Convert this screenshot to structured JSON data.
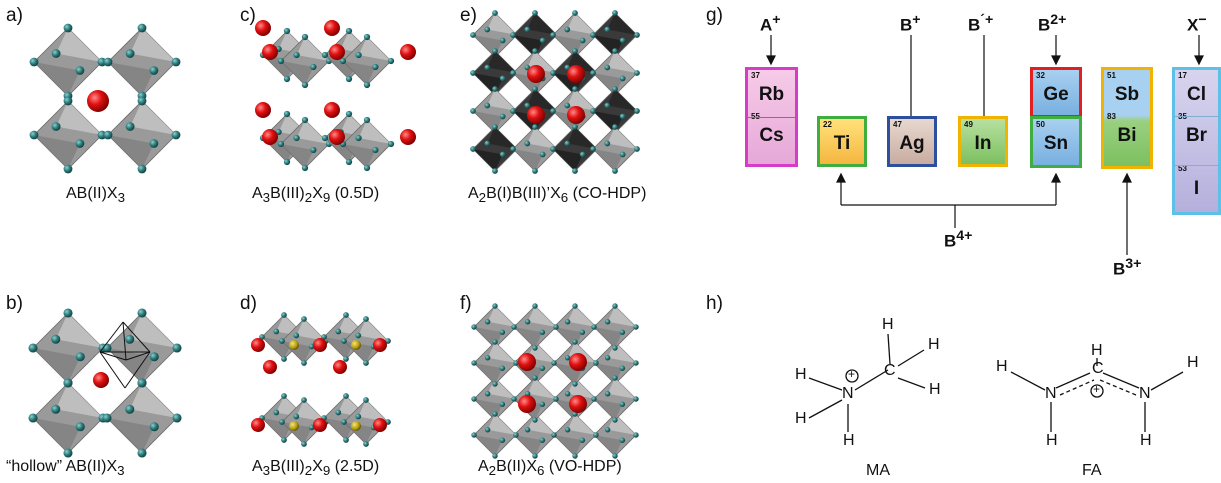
{
  "panels": {
    "a": {
      "label": "a)",
      "caption": "AB(II)X",
      "sub": "3"
    },
    "b": {
      "label": "b)",
      "caption_pre": "“hollow” AB(II)X",
      "sub": "3"
    },
    "c": {
      "label": "c)",
      "c1": "A",
      "s1": "3",
      "c2": "B(III)",
      "s2": "2",
      "c3": "X",
      "s3": "9",
      "c4": " (0.5D)"
    },
    "d": {
      "label": "d)",
      "c1": "A",
      "s1": "3",
      "c2": "B(III)",
      "s2": "2",
      "c3": "X",
      "s3": "9",
      "c4": " (2.5D)"
    },
    "e": {
      "label": "e)",
      "c1": "A",
      "s1": "2",
      "c2": "B(I)B(III)’X",
      "s2": "6",
      "c3": " (CO-HDP)"
    },
    "f": {
      "label": "f)",
      "c1": "A",
      "s1": "2",
      "c2": "B(II)X",
      "s2": "6",
      "c3": " (VO-HDP)"
    },
    "g": {
      "label": "g)"
    },
    "h": {
      "label": "h)"
    }
  },
  "ions": {
    "a_plus": {
      "base": "A",
      "sup": "+"
    },
    "b_plus": {
      "base": "B",
      "sup": "+"
    },
    "b_prime": {
      "base": "B",
      "sup": "´+"
    },
    "b_two": {
      "base": "B",
      "sup": "2+"
    },
    "x_minus": {
      "base": "X",
      "sup": "−"
    },
    "b_four": {
      "base": "B",
      "sup": "4+"
    },
    "b_three": {
      "base": "B",
      "sup": "3+"
    }
  },
  "elements": {
    "rb": {
      "num": "37",
      "sym": "Rb"
    },
    "cs": {
      "num": "55",
      "sym": "Cs"
    },
    "ti": {
      "num": "22",
      "sym": "Ti"
    },
    "ag": {
      "num": "47",
      "sym": "Ag"
    },
    "in": {
      "num": "49",
      "sym": "In"
    },
    "ge": {
      "num": "32",
      "sym": "Ge"
    },
    "sn": {
      "num": "50",
      "sym": "Sn"
    },
    "sb": {
      "num": "51",
      "sym": "Sb"
    },
    "bi": {
      "num": "83",
      "sym": "Bi"
    },
    "cl": {
      "num": "17",
      "sym": "Cl"
    },
    "br": {
      "num": "35",
      "sym": "Br"
    },
    "i": {
      "num": "53",
      "sym": "I"
    }
  },
  "molecules": {
    "ma": {
      "name": "MA",
      "H": "H",
      "N": "N",
      "C": "C",
      "plus": "+"
    },
    "fa": {
      "name": "FA",
      "H": "H",
      "N": "N",
      "C": "C",
      "plus": "+"
    }
  },
  "colors": {
    "octahedron": "#9a9a9a",
    "octahedron_dark": "#3a3a3a",
    "halide": "#2f7d7d",
    "a_cation": "#e01010",
    "dimer_link": "#b8a010",
    "a_site_border": "#d63cc8",
    "ti_border": "#3fae3f",
    "ag_border": "#2e4e9e",
    "in_border": "#f0b400",
    "ge_border": "#e02020",
    "sn_border": "#3fae3f",
    "sbbi_border": "#f0b400",
    "x_border": "#5cc0e8"
  }
}
